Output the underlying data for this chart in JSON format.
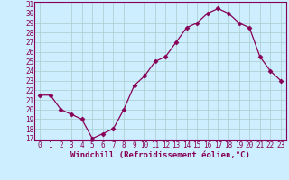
{
  "x": [
    0,
    1,
    2,
    3,
    4,
    5,
    6,
    7,
    8,
    9,
    10,
    11,
    12,
    13,
    14,
    15,
    16,
    17,
    18,
    19,
    20,
    21,
    22,
    23
  ],
  "y": [
    21.5,
    21.5,
    20.0,
    19.5,
    19.0,
    17.0,
    17.5,
    18.0,
    20.0,
    22.5,
    23.5,
    25.0,
    25.5,
    27.0,
    28.5,
    29.0,
    30.0,
    30.5,
    30.0,
    29.0,
    28.5,
    25.5,
    24.0,
    23.0
  ],
  "line_color": "#880055",
  "marker": "D",
  "marker_size": 2.5,
  "background_color": "#cceeff",
  "grid_color": "#aacccc",
  "xlabel": "Windchill (Refroidissement éolien,°C)",
  "tick_fontsize": 5.5,
  "xlabel_fontsize": 6.5,
  "ylim": [
    17,
    31
  ],
  "xlim": [
    -0.5,
    23.5
  ],
  "yticks": [
    17,
    18,
    19,
    20,
    21,
    22,
    23,
    24,
    25,
    26,
    27,
    28,
    29,
    30,
    31
  ],
  "xticks": [
    0,
    1,
    2,
    3,
    4,
    5,
    6,
    7,
    8,
    9,
    10,
    11,
    12,
    13,
    14,
    15,
    16,
    17,
    18,
    19,
    20,
    21,
    22,
    23
  ],
  "spine_color": "#880055",
  "text_color": "#880055"
}
